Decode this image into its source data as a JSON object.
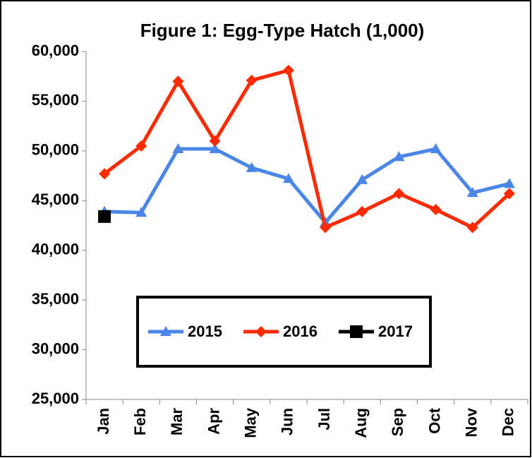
{
  "chart_data": {
    "type": "line",
    "title": "Figure 1: Egg-Type Hatch (1,000)",
    "categories": [
      "Jan",
      "Feb",
      "Mar",
      "Apr",
      "May",
      "Jun",
      "Jul",
      "Aug",
      "Sep",
      "Oct",
      "Nov",
      "Dec"
    ],
    "series": [
      {
        "name": "2015",
        "color": "#4a86e8",
        "marker": "triangle",
        "values": [
          43900,
          43800,
          50200,
          50200,
          48300,
          47200,
          42800,
          47100,
          49400,
          50200,
          45800,
          46700
        ]
      },
      {
        "name": "2016",
        "color": "#ff2a00",
        "marker": "diamond",
        "values": [
          47700,
          50500,
          57000,
          51000,
          57100,
          58100,
          42300,
          43900,
          45700,
          44100,
          42300,
          45700
        ]
      },
      {
        "name": "2017",
        "color": "#000000",
        "marker": "square",
        "values": [
          43400,
          null,
          null,
          null,
          null,
          null,
          null,
          null,
          null,
          null,
          null,
          null
        ]
      }
    ],
    "ylim": [
      25000,
      60000
    ],
    "yticks": [
      {
        "value": 25000,
        "label": "25,000"
      },
      {
        "value": 30000,
        "label": "30,000"
      },
      {
        "value": 35000,
        "label": "35,000"
      },
      {
        "value": 40000,
        "label": "40,000"
      },
      {
        "value": 45000,
        "label": "45,000"
      },
      {
        "value": 50000,
        "label": "50,000"
      },
      {
        "value": 55000,
        "label": "55,000"
      },
      {
        "value": 60000,
        "label": "60,000"
      }
    ],
    "grid": false,
    "legend": "bottom"
  }
}
